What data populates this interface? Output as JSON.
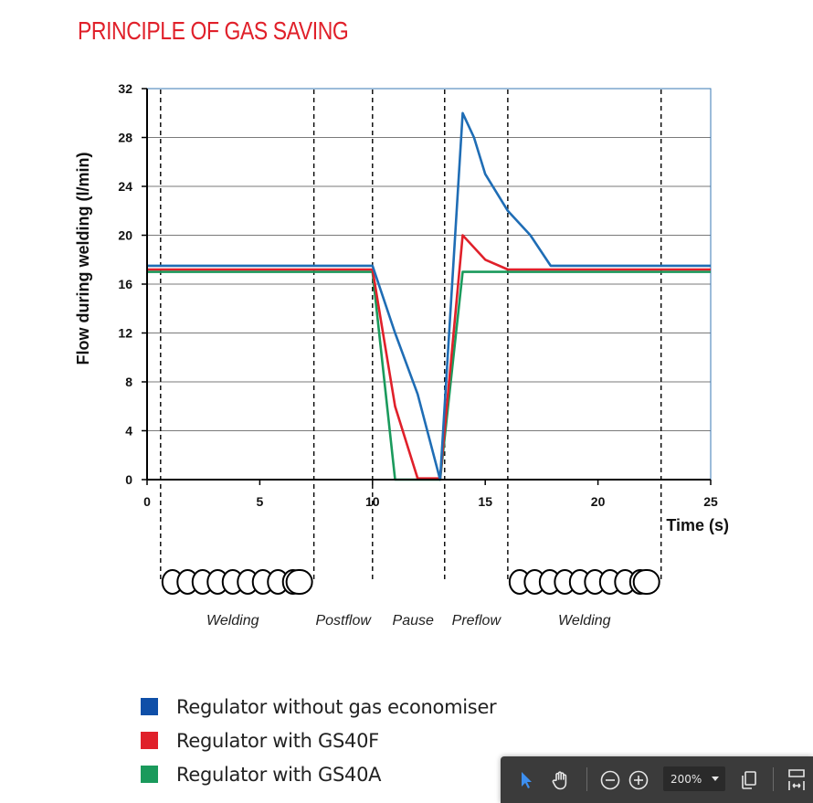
{
  "title": "PRINCIPLE OF GAS SAVING",
  "colors": {
    "title": "#e0202a",
    "blue": "#1f6db5",
    "red": "#e0202a",
    "green": "#1a9a5c"
  },
  "chart_data": {
    "type": "line",
    "title": "PRINCIPLE OF GAS SAVING",
    "xlabel": "Time (s)",
    "ylabel": "Flow during welding (l/min)",
    "xlim": [
      0,
      25
    ],
    "ylim": [
      0,
      32
    ],
    "xticks": [
      0,
      5,
      10,
      15,
      20,
      25
    ],
    "yticks": [
      0,
      4,
      8,
      12,
      16,
      20,
      24,
      28,
      32
    ],
    "grid": true,
    "phase_boundaries": [
      0.6,
      7.4,
      10,
      13.2,
      16,
      22.8
    ],
    "phases": [
      {
        "label": "Welding",
        "x": 3.8,
        "arc": true,
        "arc_from": 0.6,
        "arc_to": 7.4
      },
      {
        "label": "Postflow",
        "x": 8.7
      },
      {
        "label": "Pause",
        "x": 11.8
      },
      {
        "label": "Preflow",
        "x": 14.6
      },
      {
        "label": "Welding",
        "x": 19.4,
        "arc": true,
        "arc_from": 16,
        "arc_to": 22.8
      }
    ],
    "series": [
      {
        "name": "Regulator without gas economiser",
        "color": "#1f6db5",
        "x": [
          0,
          10,
          11,
          12,
          13,
          14,
          14.5,
          15,
          16,
          17,
          17.9,
          25
        ],
        "y": [
          17.5,
          17.5,
          12,
          7,
          0,
          30,
          28,
          25,
          22,
          20,
          17.5,
          17.5
        ]
      },
      {
        "name": "Regulator with GS40F",
        "color": "#e0202a",
        "x": [
          0,
          10,
          11,
          12,
          13,
          14,
          15,
          16,
          25
        ],
        "y": [
          17.2,
          17.2,
          6,
          0.1,
          0.1,
          20,
          18,
          17.2,
          17.2
        ]
      },
      {
        "name": "Regulator with GS40A",
        "color": "#1a9a5c",
        "x": [
          0,
          10,
          11,
          13,
          14,
          25
        ],
        "y": [
          17,
          17,
          0,
          0,
          17,
          17
        ]
      }
    ]
  },
  "legend": [
    {
      "label": "Regulator without gas economiser",
      "color": "#1f6db5"
    },
    {
      "label": "Regulator with GS40F",
      "color": "#e0202a"
    },
    {
      "label": "Regulator with GS40A",
      "color": "#1a9a5c"
    }
  ],
  "toolbar": {
    "zoom": "200%",
    "icons": [
      "select-pointer-icon",
      "hand-icon",
      "zoom-out-icon",
      "zoom-in-icon",
      "copy-icon",
      "fit-page-icon"
    ]
  }
}
